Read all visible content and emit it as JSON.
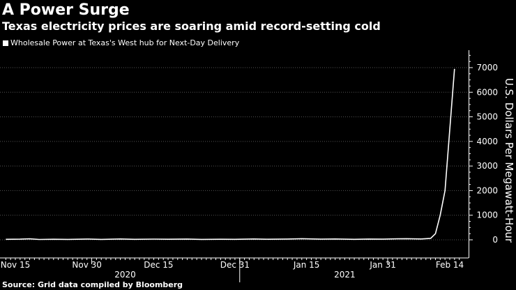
{
  "title": "A Power Surge",
  "subtitle": "Texas electricity prices are soaring amid record-setting cold",
  "legend_label": "Wholesale Power at Texas's West hub for Next-Day Delivery",
  "source": "Source: Grid data compiled by Bloomberg",
  "colors": {
    "background": "#000000",
    "line": "#ffffff",
    "grid": "#555555"
  },
  "chart_data": {
    "type": "line",
    "title": "A Power Surge",
    "subtitle": "Texas electricity prices are soaring amid record-setting cold",
    "ylabel": "U.S. Dollars Per Megawatt-Hour",
    "xlabel": "",
    "ylim": [
      0,
      7000
    ],
    "y_ticks": [
      0,
      1000,
      2000,
      3000,
      4000,
      5000,
      6000,
      7000
    ],
    "x_tick_labels": [
      "Nov 15",
      "Nov 30",
      "Dec 15",
      "Dec 31",
      "Jan 15",
      "Jan 31",
      "Feb 14"
    ],
    "x_year_labels": [
      "2020",
      "2021"
    ],
    "grid": true,
    "y_axis_position": "right",
    "series": [
      {
        "name": "Wholesale Power at Texas's West hub for Next-Day Delivery",
        "points": [
          [
            "2020-11-13",
            20
          ],
          [
            "2020-11-16",
            25
          ],
          [
            "2020-11-18",
            40
          ],
          [
            "2020-11-20",
            15
          ],
          [
            "2020-11-23",
            22
          ],
          [
            "2020-11-26",
            18
          ],
          [
            "2020-11-30",
            30
          ],
          [
            "2020-12-03",
            18
          ],
          [
            "2020-12-07",
            35
          ],
          [
            "2020-12-10",
            20
          ],
          [
            "2020-12-14",
            28
          ],
          [
            "2020-12-17",
            22
          ],
          [
            "2020-12-21",
            30
          ],
          [
            "2020-12-24",
            18
          ],
          [
            "2020-12-28",
            22
          ],
          [
            "2020-12-31",
            20
          ],
          [
            "2021-01-04",
            35
          ],
          [
            "2021-01-07",
            22
          ],
          [
            "2021-01-11",
            30
          ],
          [
            "2021-01-14",
            45
          ],
          [
            "2021-01-18",
            25
          ],
          [
            "2021-01-21",
            35
          ],
          [
            "2021-01-25",
            20
          ],
          [
            "2021-01-28",
            30
          ],
          [
            "2021-01-31",
            25
          ],
          [
            "2021-02-03",
            40
          ],
          [
            "2021-02-05",
            45
          ],
          [
            "2021-02-08",
            35
          ],
          [
            "2021-02-10",
            60
          ],
          [
            "2021-02-11",
            250
          ],
          [
            "2021-02-12",
            1000
          ],
          [
            "2021-02-13",
            2000
          ],
          [
            "2021-02-15",
            6950
          ]
        ]
      }
    ]
  }
}
